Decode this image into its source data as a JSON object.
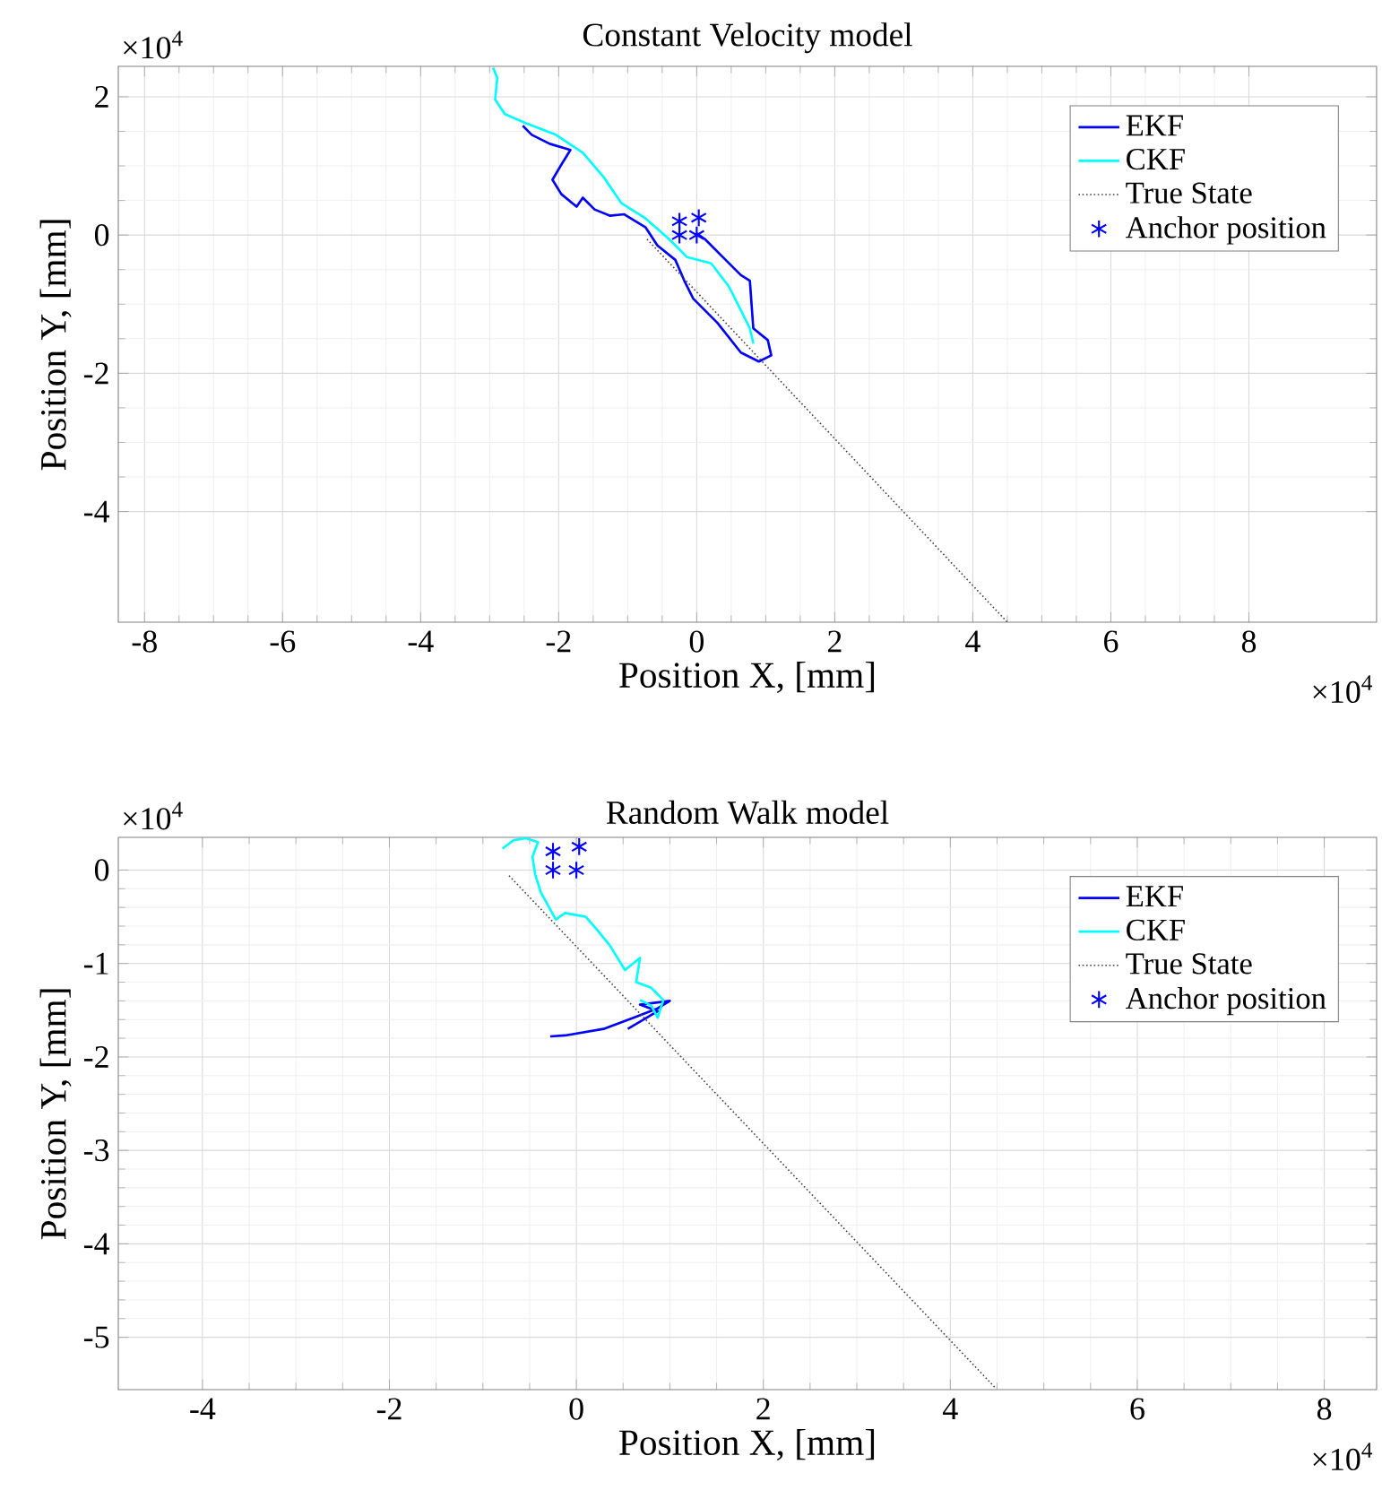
{
  "chart_data": [
    {
      "type": "line",
      "title": "Constant Velocity model",
      "xlabel": "Position X, [mm]",
      "ylabel": "Position Y, [mm]",
      "annotations": [
        "×10$^{4}$",
        "×10$^{4}$"
      ],
      "xlim": [
        -8.38,
        9.85
      ],
      "ylim": [
        -5.6,
        2.44
      ],
      "xticks": [
        -8,
        -6,
        -4,
        -2,
        0,
        2,
        4,
        6,
        8
      ],
      "yticks": [
        -4,
        -2,
        0,
        2
      ],
      "grid": true,
      "legend": "top right",
      "series": [
        {
          "name": "EKF",
          "color": "#0000ff",
          "line_style": "solid",
          "x": [
            -2.52,
            -2.39,
            -2.13,
            -1.83,
            -1.96,
            -2.09,
            -1.96,
            -1.74,
            -1.65,
            -1.48,
            -1.26,
            -1.05,
            -0.74,
            -0.57,
            -0.31,
            -0.18,
            -0.05,
            0.3,
            0.64,
            0.9,
            1.08,
            1.03,
            0.82,
            0.77,
            0.64,
            0.38,
            0.12,
            -0.01
          ],
          "values": [
            1.58,
            1.45,
            1.32,
            1.23,
            1.02,
            0.8,
            0.59,
            0.41,
            0.54,
            0.37,
            0.28,
            0.3,
            0.11,
            -0.15,
            -0.36,
            -0.66,
            -0.92,
            -1.27,
            -1.7,
            -1.83,
            -1.74,
            -1.52,
            -1.35,
            -0.66,
            -0.58,
            -0.32,
            -0.06,
            0.03
          ]
        },
        {
          "name": "CKF",
          "color": "#00ffff",
          "line_style": "solid",
          "x": [
            -2.95,
            -2.89,
            -2.92,
            -2.78,
            -2.48,
            -2.04,
            -1.65,
            -1.35,
            -1.09,
            -0.74,
            -0.4,
            -0.14,
            0.21,
            0.47,
            0.64,
            0.77,
            0.82
          ],
          "values": [
            2.42,
            2.27,
            1.96,
            1.75,
            1.62,
            1.45,
            1.19,
            0.84,
            0.46,
            0.24,
            -0.06,
            -0.32,
            -0.41,
            -0.75,
            -1.09,
            -1.35,
            -1.57
          ]
        },
        {
          "name": "True State",
          "color": "#404040",
          "line_style": "dotted",
          "x": [
            -0.72,
            4.5
          ],
          "values": [
            -0.06,
            -5.6
          ]
        },
        {
          "name": "Anchor position",
          "type": "scatter",
          "color": "#0000ff",
          "marker": "cross",
          "x": [
            -0.25,
            0.03,
            -0.25,
            0
          ],
          "values": [
            0.2,
            0.25,
            0,
            0
          ]
        }
      ]
    },
    {
      "type": "line",
      "title": "Random Walk model",
      "xlabel": "Position X, [mm]",
      "ylabel": "Position Y, [mm]",
      "annotations": [
        "×10$^{4}$",
        "×10$^{4}$"
      ],
      "xlim": [
        -4.9,
        8.56
      ],
      "ylim": [
        -5.56,
        0.35
      ],
      "xticks": [
        -4,
        -2,
        0,
        2,
        4,
        6,
        8
      ],
      "yticks": [
        -5,
        -4,
        -3,
        -2,
        -1,
        0
      ],
      "grid": true,
      "legend": "top right",
      "series": [
        {
          "name": "EKF",
          "color": "#0000ff",
          "line_style": "solid",
          "x": [
            -0.28,
            -0.12,
            0.29,
            0.61,
            0.87,
            1.0,
            0.68,
            0.87,
            0.55
          ],
          "values": [
            -1.78,
            -1.77,
            -1.7,
            -1.58,
            -1.48,
            -1.4,
            -1.44,
            -1.51,
            -1.7
          ]
        },
        {
          "name": "CKF",
          "color": "#00ffff",
          "line_style": "solid",
          "x": [
            -0.79,
            -0.67,
            -0.54,
            -0.41,
            -0.47,
            -0.44,
            -0.38,
            -0.22,
            -0.12,
            0.1,
            0.23,
            0.36,
            0.52,
            0.68,
            0.64,
            0.8,
            0.93,
            0.87,
            0.8,
            0.68
          ],
          "values": [
            0.23,
            0.32,
            0.34,
            0.3,
            0.14,
            -0.05,
            -0.24,
            -0.53,
            -0.46,
            -0.5,
            -0.65,
            -0.81,
            -1.07,
            -0.94,
            -1.2,
            -1.26,
            -1.39,
            -1.58,
            -1.45,
            -1.39
          ]
        },
        {
          "name": "True State",
          "color": "#404040",
          "line_style": "dotted",
          "x": [
            -0.72,
            4.49
          ],
          "values": [
            -0.06,
            -5.55
          ]
        },
        {
          "name": "Anchor position",
          "type": "scatter",
          "color": "#0000ff",
          "marker": "cross",
          "x": [
            -0.25,
            0.03,
            -0.25,
            0
          ],
          "values": [
            0.2,
            0.25,
            0,
            0
          ]
        }
      ]
    }
  ]
}
